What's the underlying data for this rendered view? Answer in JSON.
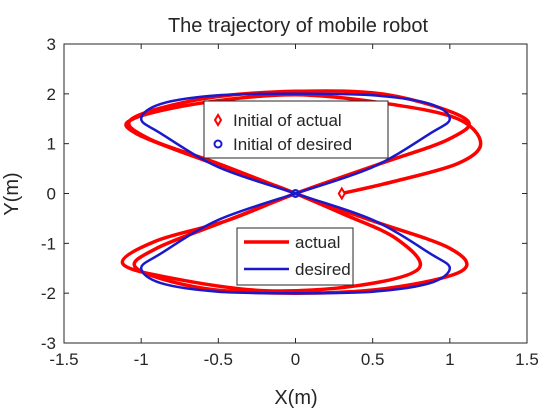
{
  "chart_data": {
    "type": "line",
    "title": "The trajectory of mobile robot",
    "xlabel": "X(m)",
    "ylabel": "Y(m)",
    "xlim": [
      -1.5,
      1.5
    ],
    "ylim": [
      -3,
      3
    ],
    "xticks": [
      -1.5,
      -1,
      -0.5,
      0,
      0.5,
      1,
      1.5
    ],
    "xtick_labels": [
      "-1.5",
      "-1",
      "-0.5",
      "0",
      "0.5",
      "1",
      "1.5"
    ],
    "yticks": [
      -3,
      -2,
      -1,
      0,
      1,
      2,
      3
    ],
    "ytick_labels": [
      "-3",
      "-2",
      "-1",
      "0",
      "1",
      "2",
      "3"
    ],
    "grid": false,
    "series": [
      {
        "name": "actual",
        "color": "#ff0000",
        "points": [
          [
            0.3,
            0.0
          ],
          [
            0.65,
            0.25
          ],
          [
            1.05,
            0.6
          ],
          [
            1.2,
            1.0
          ],
          [
            1.05,
            1.5
          ],
          [
            0.6,
            1.8
          ],
          [
            0.0,
            1.98
          ],
          [
            -0.6,
            1.82
          ],
          [
            -1.05,
            1.5
          ],
          [
            -1.03,
            1.2
          ],
          [
            -0.55,
            0.62
          ],
          [
            -0.15,
            0.18
          ],
          [
            0.0,
            0.0
          ],
          [
            0.3,
            -0.4
          ],
          [
            0.65,
            -0.9
          ],
          [
            0.8,
            -1.5
          ],
          [
            0.4,
            -1.85
          ],
          [
            -0.2,
            -1.95
          ],
          [
            -0.8,
            -1.7
          ],
          [
            -1.12,
            -1.4
          ],
          [
            -0.9,
            -0.95
          ],
          [
            -0.45,
            -0.55
          ],
          [
            0.0,
            0.0
          ],
          [
            0.55,
            0.6
          ],
          [
            1.0,
            1.1
          ],
          [
            1.1,
            1.5
          ],
          [
            0.6,
            1.98
          ],
          [
            0.0,
            2.05
          ],
          [
            -0.6,
            1.9
          ],
          [
            -1.06,
            1.5
          ],
          [
            -0.95,
            1.1
          ],
          [
            -0.5,
            0.6
          ],
          [
            0.0,
            0.0
          ],
          [
            0.5,
            -0.55
          ],
          [
            1.0,
            -1.1
          ],
          [
            1.08,
            -1.55
          ],
          [
            0.6,
            -1.9
          ],
          [
            0.0,
            -2.0
          ],
          [
            -0.6,
            -1.9
          ],
          [
            -1.03,
            -1.5
          ],
          [
            -0.9,
            -1.1
          ],
          [
            -0.45,
            -0.55
          ],
          [
            0.0,
            0.0
          ]
        ]
      },
      {
        "name": "desired",
        "color": "#1a1acc",
        "points": [
          [
            0.0,
            0.0
          ],
          [
            0.5,
            0.53
          ],
          [
            0.87,
            1.2
          ],
          [
            1.0,
            1.5
          ],
          [
            0.87,
            1.8
          ],
          [
            0.5,
            1.97
          ],
          [
            0.0,
            2.0
          ],
          [
            -0.5,
            1.97
          ],
          [
            -0.87,
            1.8
          ],
          [
            -1.0,
            1.5
          ],
          [
            -0.87,
            1.2
          ],
          [
            -0.5,
            0.53
          ],
          [
            0.0,
            0.0
          ],
          [
            0.5,
            -0.53
          ],
          [
            0.87,
            -1.2
          ],
          [
            1.0,
            -1.5
          ],
          [
            0.87,
            -1.8
          ],
          [
            0.5,
            -1.97
          ],
          [
            0.0,
            -2.0
          ],
          [
            -0.5,
            -1.97
          ],
          [
            -0.87,
            -1.8
          ],
          [
            -1.0,
            -1.5
          ],
          [
            -0.87,
            -1.2
          ],
          [
            -0.5,
            -0.53
          ],
          [
            0.0,
            0.0
          ]
        ]
      }
    ],
    "markers": [
      {
        "label": "Initial of actual",
        "shape": "diamond",
        "color": "#ff0000",
        "x": 0.3,
        "y": 0.0
      },
      {
        "label": "Initial of desired",
        "shape": "circle",
        "color": "#1a1acc",
        "x": 0.0,
        "y": 0.0
      }
    ]
  }
}
